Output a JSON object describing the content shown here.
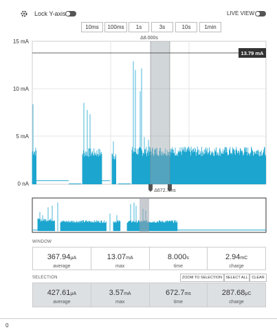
{
  "toolbar": {
    "lock_label": "Lock Y-axis",
    "live_label": "LIVE VIEW"
  },
  "time_buttons": [
    "10ms",
    "100ms",
    "1s",
    "3s",
    "10s",
    "1min"
  ],
  "chart": {
    "yticks": [
      "15 mA",
      "10 mA",
      "5 mA",
      "0 nA"
    ],
    "marker_label": "13.79 mA",
    "window_delta": "Δ8.000s",
    "selection_delta": "Δ672.7ms"
  },
  "window": {
    "title": "WINDOW",
    "stats": [
      {
        "value": "367.94",
        "unit": "μA",
        "label": "average"
      },
      {
        "value": "13.07",
        "unit": "mA",
        "label": "max"
      },
      {
        "value": "8.000",
        "unit": "s",
        "label": "time"
      },
      {
        "value": "2.94",
        "unit": "mC",
        "label": "charge"
      }
    ]
  },
  "selection": {
    "title": "SELECTION",
    "buttons": [
      "ZOOM TO SELECTION",
      "SELECT ALL",
      "CLEAR"
    ],
    "stats": [
      {
        "value": "427.61",
        "unit": "μA",
        "label": "average"
      },
      {
        "value": "3.57",
        "unit": "mA",
        "label": "max"
      },
      {
        "value": "672.7",
        "unit": "ms",
        "label": "time"
      },
      {
        "value": "287.68",
        "unit": "μC",
        "label": "charge"
      }
    ]
  },
  "footer": {
    "label": "0"
  }
}
